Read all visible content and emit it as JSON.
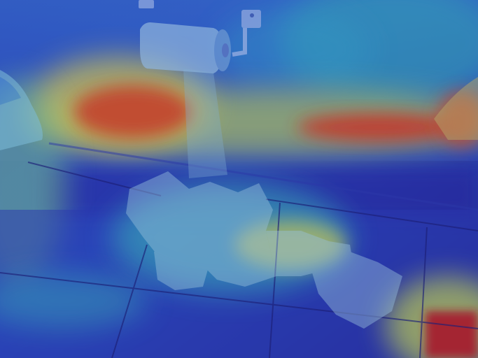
{
  "image": {
    "overlay": "attention-heatmap",
    "colormap": "jet",
    "colors": {
      "cold": "#2a2fb8",
      "cool": "#2f6fd6",
      "mid": "#35c0b8",
      "warm": "#e6d84a",
      "hot": "#d83a1f",
      "peak": "#b0121a"
    }
  }
}
